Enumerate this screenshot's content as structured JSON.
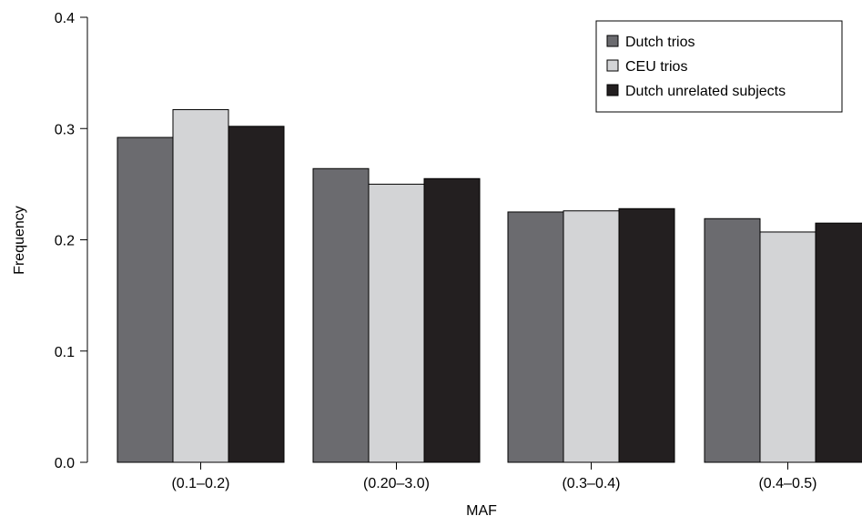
{
  "chart_data": {
    "type": "bar",
    "title": "",
    "xlabel": "MAF",
    "ylabel": "Frequency",
    "ylim": [
      0,
      0.4
    ],
    "yticks": [
      "0.0",
      "0.1",
      "0.2",
      "0.3",
      "0.4"
    ],
    "categories": [
      "(0.1–0.2)",
      "(0.20–3.0)",
      "(0.3–0.4)",
      "(0.4–0.5)"
    ],
    "series": [
      {
        "name": "Dutch trios",
        "color": "#6b6b6f",
        "values": [
          0.292,
          0.264,
          0.225,
          0.219
        ]
      },
      {
        "name": "CEU trios",
        "color": "#d3d4d6",
        "values": [
          0.317,
          0.25,
          0.226,
          0.207
        ]
      },
      {
        "name": "Dutch unrelated subjects",
        "color": "#231f20",
        "values": [
          0.302,
          0.255,
          0.228,
          0.215
        ]
      }
    ],
    "legend_position": "top-right",
    "grid": false
  }
}
